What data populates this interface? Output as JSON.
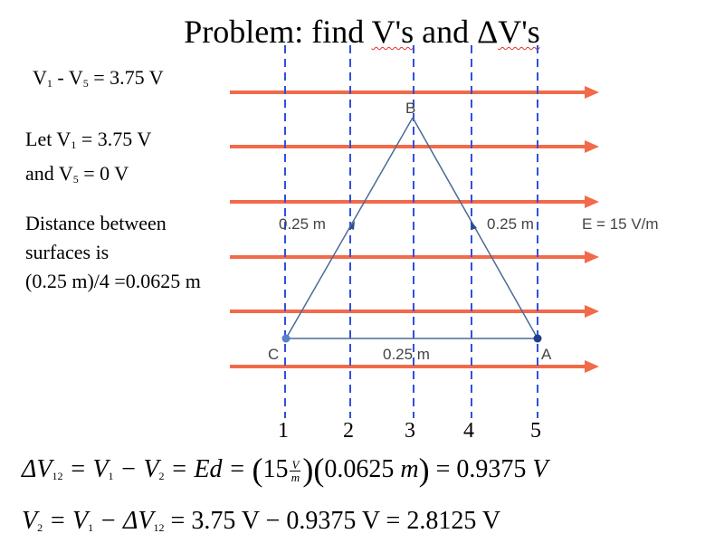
{
  "title": {
    "text1": "Problem: find ",
    "wavy1": "V's",
    "mid": " and Δ",
    "wavy2": "V's"
  },
  "given": {
    "prefix1": "V",
    "sub1": "1",
    "middle": " - V",
    "sub2": "5",
    "suffix": " = 3.75 V"
  },
  "assume": {
    "line1_prefix": "Let V",
    "line1_sub": "1",
    "line1_suffix": " = 3.75 V",
    "line2_prefix": "and V",
    "line2_sub": "5",
    "line2_suffix": " = 0 V"
  },
  "spacing": {
    "line1": "Distance between",
    "line2": "surfaces is",
    "line3": "(0.25 m)/4 =0.0625 m"
  },
  "triangle": {
    "vertex_b": "B",
    "vertex_c": "C",
    "vertex_a": "A",
    "side_left": "0.25 m",
    "side_right": "0.25 m",
    "side_bottom": "0.25 m"
  },
  "field_label": "E = 15 V/m",
  "surface_numbers": [
    "1",
    "2",
    "3",
    "4",
    "5"
  ],
  "equation1": {
    "lhs": "ΔV",
    "lhs_sub": "12",
    "eq1": " = V",
    "v1_sub": "1",
    "minus": " − V",
    "v2_sub": "2",
    "eq2": " = Ed  = ",
    "field_value": "15",
    "unit_num": "V",
    "unit_den": "m",
    "distance": "0.0625  ",
    "distance_unit": "m",
    "result": " = 0.9375  ",
    "result_unit": "V"
  },
  "equation2": {
    "lhs": "V",
    "lhs_sub": "2",
    "eq1": " = V",
    "v1_sub": "1",
    "minus": " − ΔV",
    "dv_sub": "12",
    "rest": " = 3.75 V − 0.9375  V = 2.8125  V"
  },
  "colors": {
    "field_arrow": "#f26a4a",
    "equipotential": "#3050e0",
    "triangle": "#4a6c96",
    "wavy": "#e03030"
  }
}
